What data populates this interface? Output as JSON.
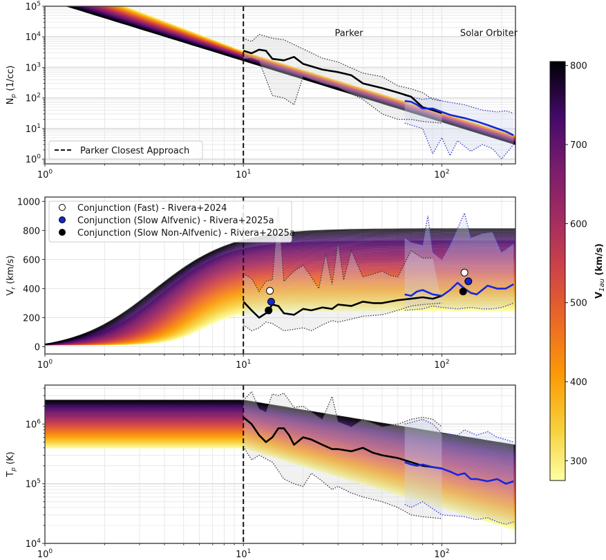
{
  "chart_data": [
    {
      "type": "line",
      "panel": "density",
      "ylabel_main": "N",
      "ylabel_sub": "p",
      "ylabel_unit": " (1/cc)",
      "xscale": "log",
      "yscale": "log",
      "xlim": [
        1,
        235
      ],
      "ylim": [
        0.7,
        100000
      ],
      "xticks": [
        {
          "base": "10",
          "exp": "0",
          "v": 1
        },
        {
          "base": "10",
          "exp": "1",
          "v": 10
        },
        {
          "base": "10",
          "exp": "2",
          "v": 100
        }
      ],
      "yticks": [
        {
          "base": "10",
          "exp": "0",
          "v": 1
        },
        {
          "base": "10",
          "exp": "1",
          "v": 10
        },
        {
          "base": "10",
          "exp": "2",
          "v": 100
        },
        {
          "base": "10",
          "exp": "3",
          "v": 1000
        },
        {
          "base": "10",
          "exp": "4",
          "v": 10000
        },
        {
          "base": "10",
          "exp": "5",
          "v": 100000
        }
      ],
      "grid": true,
      "annotations": [
        "Parker",
        "Solar Orbiter"
      ],
      "legend": {
        "position": "lower-left",
        "entries": [
          "Parker Closest Approach"
        ]
      },
      "vline_x": 10,
      "model": {
        "x": [
          1,
          2,
          3,
          5,
          10,
          20,
          50,
          100,
          235
        ],
        "slow_ref": 2000,
        "fast_ref": 1700
      },
      "parker_median": {
        "x": [
          10,
          11,
          12,
          13,
          14,
          16,
          18,
          20,
          25,
          30,
          35,
          40,
          50,
          60,
          70,
          80,
          90,
          100
        ],
        "y": [
          3500,
          2900,
          3800,
          3500,
          1900,
          1700,
          2200,
          1300,
          850,
          700,
          550,
          300,
          210,
          150,
          110,
          50,
          40,
          32
        ]
      },
      "parker_upper": {
        "x": [
          10,
          11,
          12,
          14,
          16,
          20,
          25,
          30,
          40,
          50,
          60,
          70,
          80,
          90,
          100
        ],
        "y": [
          9000,
          7000,
          12000,
          9000,
          8000,
          4000,
          2000,
          1500,
          650,
          500,
          250,
          200,
          150,
          90,
          80
        ]
      },
      "parker_lower": {
        "x": [
          10,
          11,
          12,
          14,
          16,
          18,
          20,
          25,
          30,
          40,
          50,
          60,
          70,
          80,
          100
        ],
        "y": [
          1900,
          2000,
          1600,
          120,
          100,
          60,
          500,
          300,
          220,
          90,
          30,
          20,
          20,
          17,
          15
        ]
      },
      "solo_median": {
        "x": [
          65,
          70,
          75,
          80,
          90,
          100,
          110,
          130,
          150,
          170,
          190,
          210,
          230
        ],
        "y": [
          80,
          75,
          60,
          45,
          45,
          35,
          28,
          22,
          17,
          13,
          10,
          8,
          6
        ]
      },
      "solo_upper": {
        "x": [
          65,
          80,
          90,
          100,
          130,
          160,
          190,
          210,
          230
        ],
        "y": [
          120,
          90,
          100,
          80,
          60,
          40,
          35,
          38,
          32
        ]
      },
      "solo_lower": {
        "x": [
          65,
          80,
          90,
          100,
          110,
          120,
          140,
          160,
          180,
          200,
          230
        ],
        "y": [
          15,
          10,
          1.5,
          5,
          1.3,
          4,
          1.8,
          3,
          2.2,
          1.0,
          3
        ]
      }
    },
    {
      "type": "line",
      "panel": "velocity",
      "ylabel_main": "V",
      "ylabel_sub": "r",
      "ylabel_unit": " (km/s)",
      "xscale": "log",
      "yscale": "linear",
      "xlim": [
        1,
        235
      ],
      "ylim": [
        -50,
        1030
      ],
      "xticks": [
        {
          "base": "10",
          "exp": "0",
          "v": 1
        },
        {
          "base": "10",
          "exp": "1",
          "v": 10
        },
        {
          "base": "10",
          "exp": "2",
          "v": 100
        }
      ],
      "yticks": [
        {
          "label": "0",
          "v": 0
        },
        {
          "label": "200",
          "v": 200
        },
        {
          "label": "400",
          "v": 400
        },
        {
          "label": "600",
          "v": 600
        },
        {
          "label": "800",
          "v": 800
        },
        {
          "label": "1000",
          "v": 1000
        }
      ],
      "grid": true,
      "legend": {
        "position": "upper-left",
        "entries": [
          "Conjunction (Fast) - Rivera+2024",
          "Conjunction (Slow Alfvenic) - Rivera+2025a",
          "Conjunction (Slow Non-Alfvenic) - Rivera+2025a"
        ]
      },
      "conjunction_points": [
        {
          "name": "fast",
          "color": "#ffffff",
          "points": [
            {
              "x": 13.6,
              "y": 385
            },
            {
              "x": 130,
              "y": 510
            }
          ]
        },
        {
          "name": "slow-alfvenic",
          "color": "#1428c8",
          "points": [
            {
              "x": 13.8,
              "y": 310
            },
            {
              "x": 136,
              "y": 450
            }
          ]
        },
        {
          "name": "slow-non-alfvenic",
          "color": "#000000",
          "points": [
            {
              "x": 13.4,
              "y": 250
            },
            {
              "x": 128,
              "y": 380
            }
          ]
        }
      ],
      "parker_median": {
        "x": [
          10,
          11,
          12,
          13,
          14,
          15,
          16,
          18,
          20,
          22,
          25,
          28,
          30,
          35,
          40,
          45,
          50,
          60,
          70,
          80,
          90,
          100
        ],
        "y": [
          310,
          250,
          200,
          230,
          290,
          280,
          230,
          220,
          260,
          250,
          270,
          260,
          290,
          280,
          310,
          300,
          300,
          320,
          330,
          340,
          330,
          350
        ]
      },
      "parker_upper": {
        "x": [
          10,
          11,
          12,
          13,
          14,
          15,
          16,
          18,
          20,
          22,
          24,
          26,
          28,
          30,
          32,
          35,
          40,
          45,
          50,
          55,
          60,
          70,
          80,
          90
        ],
        "y": [
          500,
          470,
          380,
          450,
          460,
          960,
          450,
          520,
          560,
          480,
          400,
          640,
          430,
          720,
          460,
          660,
          480,
          500,
          520,
          490,
          480,
          660,
          610,
          610
        ]
      },
      "parker_lower": {
        "x": [
          10,
          11,
          12,
          13,
          14,
          16,
          18,
          20,
          22,
          25,
          28,
          30,
          35,
          40,
          50,
          60,
          70,
          80,
          100
        ],
        "y": [
          150,
          110,
          130,
          170,
          160,
          110,
          120,
          130,
          110,
          150,
          180,
          170,
          190,
          210,
          220,
          250,
          280,
          290,
          300
        ]
      },
      "solo_median": {
        "x": [
          65,
          70,
          75,
          80,
          90,
          100,
          110,
          120,
          130,
          140,
          150,
          170,
          190,
          210,
          230
        ],
        "y": [
          360,
          350,
          380,
          390,
          360,
          350,
          390,
          440,
          400,
          370,
          360,
          420,
          400,
          400,
          430
        ]
      },
      "solo_upper": {
        "x": [
          65,
          70,
          80,
          85,
          90,
          100,
          110,
          130,
          140,
          160,
          180,
          200,
          230
        ],
        "y": [
          750,
          720,
          700,
          900,
          650,
          600,
          700,
          920,
          750,
          780,
          790,
          650,
          710
        ]
      },
      "solo_lower": {
        "x": [
          65,
          80,
          90,
          100,
          120,
          140,
          160,
          180,
          200,
          230
        ],
        "y": [
          250,
          260,
          280,
          270,
          260,
          270,
          260,
          260,
          270,
          300
        ]
      }
    },
    {
      "type": "line",
      "panel": "temperature",
      "ylabel_main": "T",
      "ylabel_sub": "p",
      "ylabel_unit": " (K)",
      "xscale": "log",
      "yscale": "log",
      "xlim": [
        1,
        235
      ],
      "ylim": [
        10000,
        4500000
      ],
      "xticks": [
        {
          "base": "10",
          "exp": "0",
          "v": 1
        },
        {
          "base": "10",
          "exp": "1",
          "v": 10
        },
        {
          "base": "10",
          "exp": "2",
          "v": 100
        }
      ],
      "yticks": [
        {
          "base": "10",
          "exp": "4",
          "v": 10000
        },
        {
          "base": "10",
          "exp": "5",
          "v": 100000
        },
        {
          "base": "10",
          "exp": "6",
          "v": 1000000
        }
      ],
      "grid": true,
      "parker_median": {
        "x": [
          10,
          11,
          12,
          13,
          14,
          15,
          16,
          17,
          18,
          20,
          22,
          25,
          28,
          30,
          35,
          40,
          45,
          50,
          60,
          70,
          80,
          90,
          100
        ],
        "y": [
          1300000,
          1000000,
          650000,
          500000,
          600000,
          850000,
          850000,
          650000,
          450000,
          600000,
          550000,
          450000,
          380000,
          380000,
          350000,
          400000,
          330000,
          300000,
          270000,
          230000,
          200000,
          190000,
          180000
        ]
      },
      "parker_upper": {
        "x": [
          10,
          11,
          12,
          13,
          14,
          15,
          16,
          18,
          20,
          22,
          25,
          28,
          30,
          35,
          40,
          50,
          60,
          70,
          80,
          90,
          100
        ],
        "y": [
          2500000,
          3500000,
          1800000,
          1600000,
          3200000,
          3000000,
          3300000,
          1900000,
          2000000,
          1600000,
          1200000,
          2900000,
          1100000,
          900000,
          1200000,
          900000,
          1000000,
          1200000,
          1300000,
          1200000,
          900000
        ]
      },
      "parker_lower": {
        "x": [
          10,
          11,
          12,
          14,
          16,
          18,
          20,
          22,
          25,
          28,
          30,
          35,
          40,
          50,
          60,
          70,
          80,
          90,
          100
        ],
        "y": [
          420000,
          250000,
          300000,
          230000,
          120000,
          100000,
          90000,
          150000,
          110000,
          80000,
          90000,
          70000,
          60000,
          50000,
          40000,
          30000,
          28000,
          27000,
          26000
        ]
      },
      "solo_median": {
        "x": [
          65,
          70,
          75,
          80,
          90,
          100,
          110,
          120,
          130,
          140,
          150,
          170,
          190,
          210,
          230
        ],
        "y": [
          230000,
          210000,
          200000,
          210000,
          190000,
          180000,
          160000,
          140000,
          150000,
          120000,
          120000,
          110000,
          120000,
          100000,
          110000
        ]
      },
      "solo_upper": {
        "x": [
          65,
          80,
          90,
          100,
          120,
          130,
          150,
          170,
          190,
          210,
          230
        ],
        "y": [
          1000000,
          1200000,
          1000000,
          700000,
          650000,
          800000,
          650000,
          750000,
          600000,
          550000,
          500000
        ]
      },
      "solo_lower": {
        "x": [
          65,
          70,
          80,
          90,
          100,
          130,
          150,
          170,
          190,
          210,
          230
        ],
        "y": [
          45000,
          40000,
          50000,
          38000,
          30000,
          28000,
          25000,
          27000,
          23000,
          21000,
          23000
        ]
      }
    }
  ],
  "colorbar": {
    "label_main": "V",
    "label_sub": "1au",
    "label_unit": " (km/s)",
    "range": [
      275,
      805
    ],
    "ticks": [
      "300",
      "400",
      "500",
      "600",
      "700",
      "800"
    ],
    "tick_values": [
      300,
      400,
      500,
      600,
      700,
      800
    ],
    "colormap": "inferno-reversed"
  },
  "colors": {
    "parker_line": "#000000",
    "solo_line": "#1428dc",
    "parker_band": "#d6d6d6",
    "solo_band": "#cfd3ee",
    "grid": "#d9d9d9"
  }
}
